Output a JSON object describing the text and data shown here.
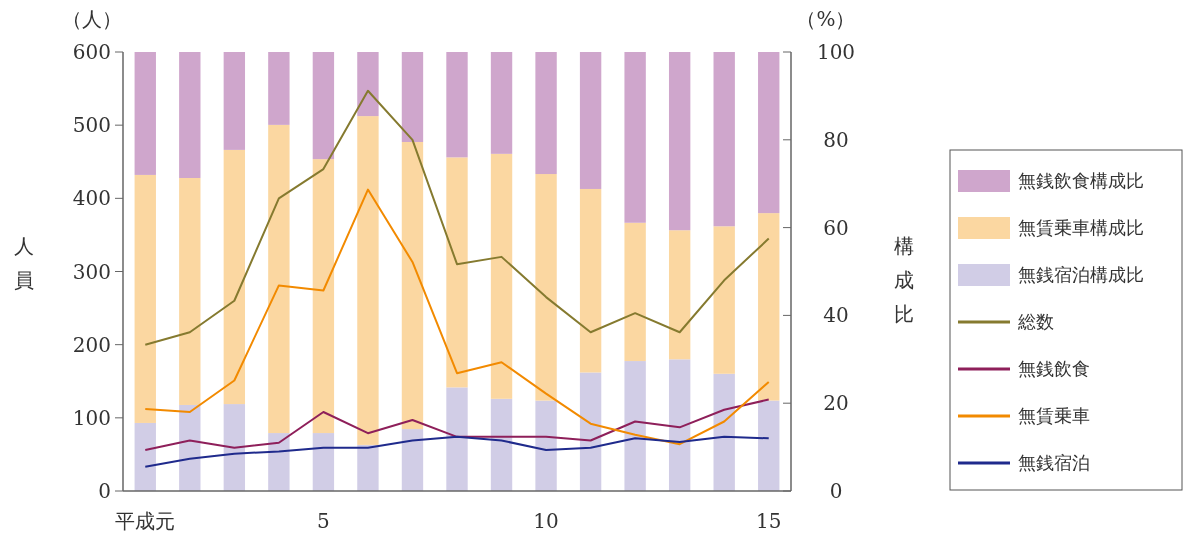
{
  "chart_data": {
    "type": "bar",
    "stacked": true,
    "categories": [
      "平成元",
      null,
      null,
      null,
      "5",
      null,
      null,
      null,
      null,
      "10",
      null,
      null,
      null,
      null,
      "15"
    ],
    "ylabel": "人員",
    "y2label": "構成比",
    "annotations": [
      "（人）",
      "（%）"
    ],
    "ylim": [
      0,
      600
    ],
    "yticks": [
      0,
      100,
      200,
      300,
      400,
      500,
      600
    ],
    "y2lim": [
      0,
      100
    ],
    "y2ticks": [
      0,
      20,
      40,
      60,
      80,
      100
    ],
    "legend": "right",
    "grid": false,
    "series": [
      {
        "name": "無銭宿泊構成比",
        "axis": "y2",
        "color": "#d1cde6",
        "values": [
          15.5,
          19.6,
          19.8,
          13.2,
          13.2,
          10.5,
          14.1,
          23.6,
          21.0,
          20.6,
          27.0,
          29.6,
          30.0,
          26.7,
          20.6
        ]
      },
      {
        "name": "無賃乗車構成比",
        "axis": "y2",
        "color": "#fbd7a1",
        "values": [
          56.5,
          51.7,
          57.9,
          70.2,
          62.4,
          74.9,
          65.4,
          52.4,
          55.8,
          51.6,
          41.8,
          31.5,
          29.4,
          33.6,
          42.7
        ]
      },
      {
        "name": "無銭飲食構成比",
        "axis": "y2",
        "color": "#cfa6cc",
        "values": [
          28.0,
          28.7,
          22.3,
          16.6,
          24.4,
          14.6,
          20.5,
          24.0,
          23.2,
          27.8,
          31.2,
          38.9,
          40.6,
          39.7,
          36.7
        ]
      },
      {
        "name": "総数",
        "type": "line",
        "color": "#857a2f",
        "values": [
          200,
          217,
          260,
          400,
          440,
          547,
          480,
          310,
          320,
          265,
          217,
          243,
          217,
          288,
          345
        ]
      },
      {
        "name": "無銭飲食",
        "type": "line",
        "color": "#8e1f5a",
        "values": [
          56,
          69,
          59,
          66,
          108,
          79,
          97,
          74,
          74,
          74,
          69,
          95,
          87,
          111,
          125
        ]
      },
      {
        "name": "無賃乗車",
        "type": "line",
        "color": "#f28a00",
        "values": [
          112,
          108,
          151,
          281,
          274,
          412,
          313,
          161,
          176,
          133,
          92,
          77,
          64,
          95,
          149
        ]
      },
      {
        "name": "無銭宿泊",
        "type": "line",
        "color": "#1f2a8c",
        "values": [
          33,
          44,
          51,
          54,
          59,
          59,
          69,
          74,
          69,
          56,
          59,
          72,
          67,
          74,
          72
        ]
      }
    ]
  }
}
